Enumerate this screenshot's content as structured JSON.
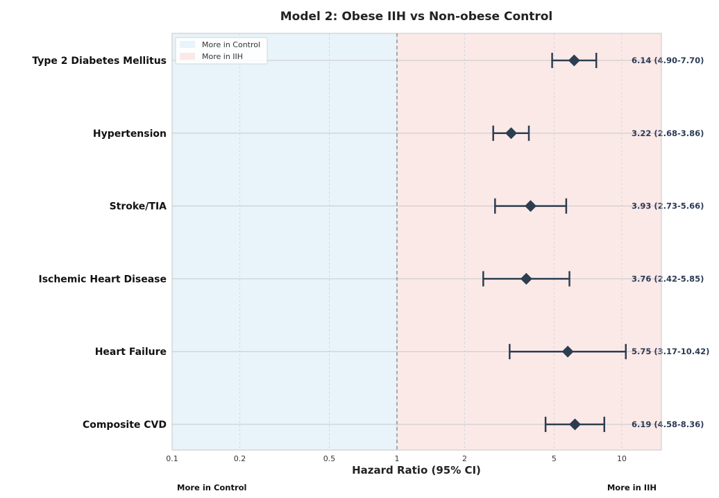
{
  "chart_data": {
    "type": "forest",
    "title": "Model 2: Obese IIH vs Non-obese Control",
    "xlabel": "Hazard Ratio (95% CI)",
    "x_scale": "log",
    "xlim": [
      0.1,
      15
    ],
    "xticks": [
      0.1,
      0.2,
      0.5,
      1,
      2,
      5,
      10
    ],
    "xtick_labels": [
      "0.1",
      "0.2",
      "0.5",
      "1",
      "2",
      "5",
      "10"
    ],
    "reference_line": 1,
    "grid": true,
    "legend": {
      "placement": "top-left",
      "entries": [
        {
          "label": "More in Control",
          "color": "#e8f3fa"
        },
        {
          "label": "More in IIH",
          "color": "#fbe9e8"
        }
      ]
    },
    "direction_labels": {
      "left": "More in Control",
      "right": "More in IIH"
    },
    "marker_color": "#2c3e50",
    "rows": [
      {
        "label": "Type 2 Diabetes Mellitus",
        "hr": 6.14,
        "lo": 4.9,
        "hi": 7.7,
        "text": "6.14 (4.90-7.70)"
      },
      {
        "label": "Hypertension",
        "hr": 3.22,
        "lo": 2.68,
        "hi": 3.86,
        "text": "3.22 (2.68-3.86)"
      },
      {
        "label": "Stroke/TIA",
        "hr": 3.93,
        "lo": 2.73,
        "hi": 5.66,
        "text": "3.93 (2.73-5.66)"
      },
      {
        "label": "Ischemic Heart Disease",
        "hr": 3.76,
        "lo": 2.42,
        "hi": 5.85,
        "text": "3.76 (2.42-5.85)"
      },
      {
        "label": "Heart Failure",
        "hr": 5.75,
        "lo": 3.17,
        "hi": 10.42,
        "text": "5.75 (3.17-10.42)"
      },
      {
        "label": "Composite CVD",
        "hr": 6.19,
        "lo": 4.58,
        "hi": 8.36,
        "text": "6.19 (4.58-8.36)"
      }
    ]
  }
}
